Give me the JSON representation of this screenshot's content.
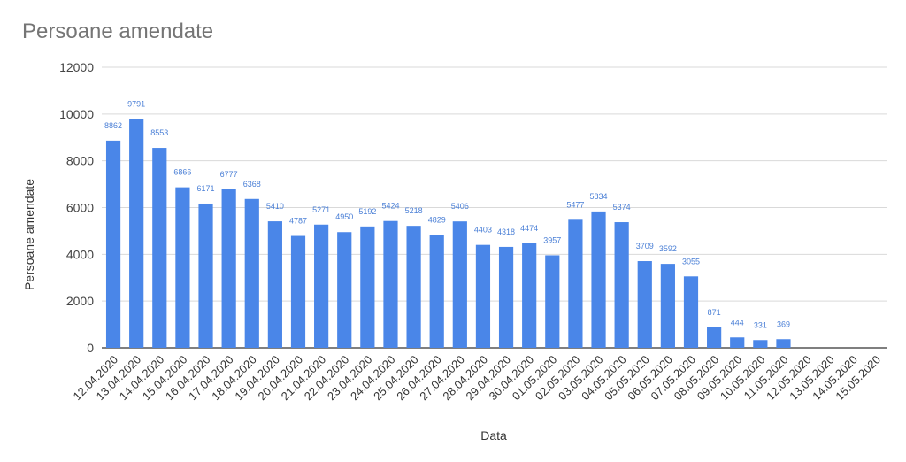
{
  "chart_data": {
    "type": "bar",
    "title": "Persoane amendate",
    "xlabel": "Data",
    "ylabel": "Persoane amendate",
    "ylim": [
      0,
      12000
    ],
    "yticks": [
      0,
      2000,
      4000,
      6000,
      8000,
      10000,
      12000
    ],
    "grid": true,
    "bar_color": "#4a86e8",
    "label_color": "#4a7fd6",
    "categories": [
      "12.04.2020",
      "13.04.2020",
      "14.04.2020",
      "15.04.2020",
      "16.04.2020",
      "17.04.2020",
      "18.04.2020",
      "19.04.2020",
      "20.04.2020",
      "21.04.2020",
      "22.04.2020",
      "23.04.2020",
      "24.04.2020",
      "25.04.2020",
      "26.04.2020",
      "27.04.2020",
      "28.04.2020",
      "29.04.2020",
      "30.04.2020",
      "01.05.2020",
      "02.05.2020",
      "03.05.2020",
      "04.05.2020",
      "05.05.2020",
      "06.05.2020",
      "07.05.2020",
      "08.05.2020",
      "09.05.2020",
      "10.05.2020",
      "11.05.2020",
      "12.05.2020",
      "13.05.2020",
      "14.05.2020",
      "15.05.2020"
    ],
    "values": [
      8862,
      9791,
      8553,
      6866,
      6171,
      6777,
      6368,
      5410,
      4787,
      5271,
      4950,
      5192,
      5424,
      5218,
      4829,
      5406,
      4403,
      4318,
      4474,
      3957,
      5477,
      5834,
      5374,
      3709,
      3592,
      3055,
      871,
      444,
      331,
      369,
      null,
      null,
      null,
      null
    ]
  }
}
